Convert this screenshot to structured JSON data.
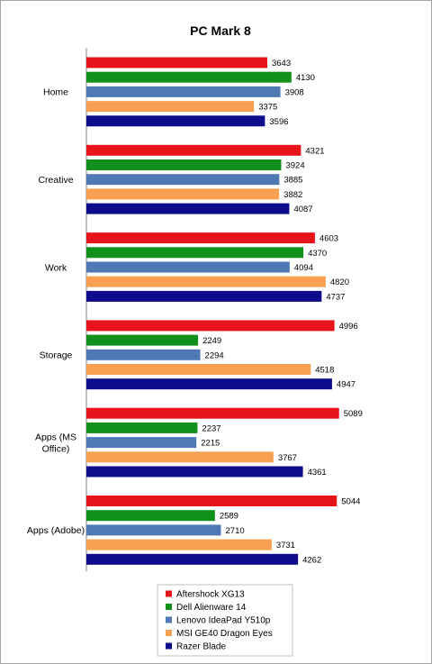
{
  "chart_data": {
    "type": "bar",
    "orientation": "horizontal",
    "title": "PC Mark 8",
    "categories": [
      "Home",
      "Creative",
      "Work",
      "Storage",
      "Apps (MS Office)",
      "Apps (Adobe)"
    ],
    "category_label_lines": [
      [
        "Home"
      ],
      [
        "Creative"
      ],
      [
        "Work"
      ],
      [
        "Storage"
      ],
      [
        "Apps (MS",
        "Office)"
      ],
      [
        "Apps (Adobe)"
      ]
    ],
    "series": [
      {
        "name": "Aftershock XG13",
        "color": "#e8141b",
        "values": [
          3643,
          4321,
          4603,
          4996,
          5089,
          5044
        ]
      },
      {
        "name": "Dell Alienware 14",
        "color": "#12901c",
        "values": [
          4130,
          3924,
          4370,
          2249,
          2237,
          2589
        ]
      },
      {
        "name": "Lenovo IdeaPad Y510p",
        "color": "#4f79b4",
        "values": [
          3908,
          3885,
          4094,
          2294,
          2215,
          2710
        ]
      },
      {
        "name": "MSI GE40 Dragon Eyes",
        "color": "#f7a052",
        "values": [
          3375,
          3882,
          4820,
          4518,
          3767,
          3731
        ]
      },
      {
        "name": "Razer Blade",
        "color": "#0c0c8c",
        "values": [
          3596,
          4087,
          4737,
          4947,
          4361,
          4262
        ]
      }
    ],
    "xlim": [
      0,
      6000
    ],
    "x_axis_ticks_shown": false,
    "grid": false,
    "data_labels": true,
    "legend_position": "bottom"
  }
}
